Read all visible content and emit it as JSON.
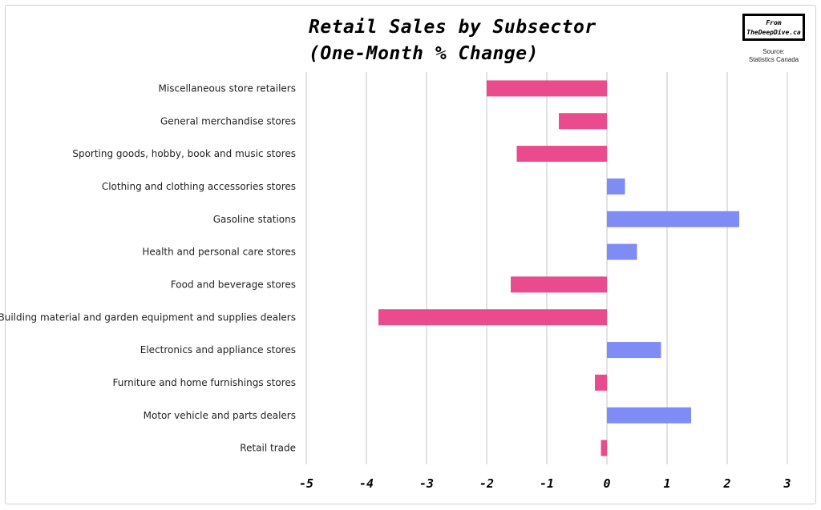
{
  "chart_data": {
    "type": "bar",
    "orientation": "horizontal",
    "title": "Retail Sales by Subsector",
    "subtitle": "(One-Month % Change)",
    "categories": [
      "Miscellaneous store retailers",
      "General merchandise stores",
      "Sporting goods, hobby, book and music stores",
      "Clothing and clothing accessories stores",
      "Gasoline stations",
      "Health and personal care stores",
      "Food and beverage stores",
      "Building material and garden equipment and supplies dealers",
      "Electronics and appliance stores",
      "Furniture and home furnishings stores",
      "Motor vehicle and parts dealers",
      "Retail trade"
    ],
    "values": [
      -2.0,
      -0.8,
      -1.5,
      0.3,
      2.2,
      0.5,
      -1.6,
      -3.8,
      0.9,
      -0.2,
      1.4,
      -0.1
    ],
    "xlim": [
      -5,
      3
    ],
    "xticks": [
      "-5",
      "-4",
      "-3",
      "-2",
      "-1",
      "0",
      "1",
      "2",
      "3"
    ],
    "grid": true,
    "colors": {
      "negative": "#E94B8C",
      "positive": "#7F8CF5"
    }
  },
  "branding": {
    "line1": "From",
    "line2": "TheDeepDive.ca"
  },
  "source": {
    "label": "Source:",
    "name": "Statistics Canada"
  }
}
